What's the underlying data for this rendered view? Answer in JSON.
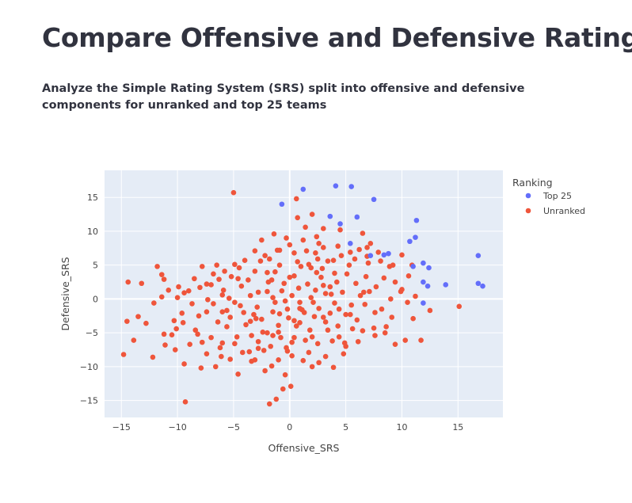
{
  "page": {
    "title": "Compare Offensive and Defensive Ratings",
    "subtitle": "Analyze the Simple Rating System (SRS) split into offensive and defensive components for unranked and top 25 teams"
  },
  "chart_data": {
    "type": "scatter",
    "xlabel": "Offensive_SRS",
    "ylabel": "Defensive_SRS",
    "xlim": [
      -16.5,
      19
    ],
    "ylim": [
      -17.5,
      19
    ],
    "x_ticks": [
      -15,
      -10,
      -5,
      0,
      5,
      10,
      15
    ],
    "y_ticks": [
      -15,
      -10,
      -5,
      0,
      5,
      10,
      15
    ],
    "grid": true,
    "plot_background": "#e5ecf6",
    "legend": {
      "title": "Ranking",
      "placement": "right"
    },
    "series": [
      {
        "name": "Top 25",
        "color": "#636efa",
        "points": [
          [
            1.2,
            16.2
          ],
          [
            4.1,
            16.7
          ],
          [
            5.5,
            16.6
          ],
          [
            -0.7,
            14.0
          ],
          [
            7.5,
            14.7
          ],
          [
            3.6,
            12.2
          ],
          [
            4.5,
            11.1
          ],
          [
            6.0,
            12.1
          ],
          [
            11.3,
            11.6
          ],
          [
            11.2,
            9.1
          ],
          [
            10.7,
            8.5
          ],
          [
            5.4,
            8.2
          ],
          [
            7.2,
            6.4
          ],
          [
            8.4,
            6.5
          ],
          [
            8.8,
            6.7
          ],
          [
            11.0,
            4.8
          ],
          [
            11.9,
            5.3
          ],
          [
            12.4,
            4.6
          ],
          [
            16.8,
            6.4
          ],
          [
            11.9,
            2.5
          ],
          [
            12.3,
            1.9
          ],
          [
            13.9,
            2.1
          ],
          [
            16.8,
            2.3
          ],
          [
            17.2,
            1.9
          ],
          [
            11.9,
            -0.6
          ]
        ]
      },
      {
        "name": "Unranked",
        "color": "#ef553b",
        "points": [
          [
            -5.0,
            15.7
          ],
          [
            0.6,
            14.8
          ],
          [
            -2.5,
            8.7
          ],
          [
            -0.9,
            7.2
          ],
          [
            -2.2,
            6.4
          ],
          [
            1.0,
            4.8
          ],
          [
            -1.3,
            4.0
          ],
          [
            2.4,
            3.9
          ],
          [
            0.0,
            3.2
          ],
          [
            -0.7,
            1.2
          ],
          [
            0.8,
            1.6
          ],
          [
            2.3,
            1.3
          ],
          [
            -0.2,
            -1.5
          ],
          [
            -1.5,
            -1.9
          ],
          [
            1.3,
            -2.0
          ],
          [
            -0.1,
            -2.8
          ],
          [
            0.9,
            -3.5
          ],
          [
            3.0,
            -2.7
          ],
          [
            -3.0,
            -2.9
          ],
          [
            -1.0,
            -4.9
          ],
          [
            -2.4,
            -4.9
          ],
          [
            0.4,
            -5.7
          ],
          [
            1.4,
            -6.1
          ],
          [
            -1.5,
            -5.4
          ],
          [
            -3.4,
            -5.4
          ],
          [
            -0.3,
            -7.2
          ],
          [
            -2.3,
            -7.6
          ],
          [
            1.7,
            -7.9
          ],
          [
            0.2,
            -8.4
          ],
          [
            -1.0,
            -9.0
          ],
          [
            -3.4,
            -9.2
          ],
          [
            2.6,
            -9.4
          ],
          [
            -4.2,
            -7.9
          ],
          [
            -6.0,
            -6.5
          ],
          [
            -5.6,
            -4.1
          ],
          [
            -3.9,
            -3.8
          ],
          [
            -5.6,
            -1.7
          ],
          [
            -4.9,
            -0.5
          ],
          [
            -6.0,
            0.6
          ],
          [
            -7.0,
            2.1
          ],
          [
            -5.2,
            3.3
          ],
          [
            -4.5,
            4.6
          ],
          [
            -6.5,
            5.0
          ],
          [
            -7.8,
            4.8
          ],
          [
            -8.5,
            3.0
          ],
          [
            -9.0,
            1.2
          ],
          [
            -10.0,
            0.2
          ],
          [
            -11.4,
            0.3
          ],
          [
            -13.5,
            -2.6
          ],
          [
            -13.9,
            -6.1
          ],
          [
            -14.8,
            -8.2
          ],
          [
            -9.4,
            -9.6
          ],
          [
            -9.3,
            -15.2
          ],
          [
            -12.2,
            -8.6
          ],
          [
            -10.2,
            -7.5
          ],
          [
            -7.8,
            -6.4
          ],
          [
            -8.4,
            -4.6
          ],
          [
            -10.5,
            -5.3
          ],
          [
            -10.3,
            -3.2
          ],
          [
            -14.5,
            -3.3
          ],
          [
            -12.8,
            -3.6
          ],
          [
            -11.8,
            4.8
          ],
          [
            -14.4,
            2.5
          ],
          [
            -13.2,
            2.3
          ],
          [
            -11.4,
            3.6
          ],
          [
            -1.2,
            -14.8
          ],
          [
            -1.8,
            -15.5
          ],
          [
            -0.6,
            -13.3
          ],
          [
            0.1,
            -12.9
          ],
          [
            -0.4,
            -11.2
          ],
          [
            -2.2,
            -10.6
          ],
          [
            -4.6,
            -11.1
          ],
          [
            -6.6,
            -10.0
          ],
          [
            -7.9,
            -10.2
          ],
          [
            -3.1,
            -9.0
          ],
          [
            2.0,
            -10.0
          ],
          [
            3.9,
            -10.1
          ],
          [
            5.0,
            -7.0
          ],
          [
            4.4,
            -5.6
          ],
          [
            3.4,
            -4.6
          ],
          [
            5.6,
            -4.4
          ],
          [
            5.0,
            -2.3
          ],
          [
            4.0,
            -0.6
          ],
          [
            3.7,
            0.7
          ],
          [
            4.2,
            2.5
          ],
          [
            5.1,
            3.7
          ],
          [
            3.4,
            5.6
          ],
          [
            2.5,
            5.9
          ],
          [
            4.6,
            6.4
          ],
          [
            5.8,
            5.9
          ],
          [
            3.0,
            7.6
          ],
          [
            2.4,
            9.2
          ],
          [
            1.2,
            8.7
          ],
          [
            -1.1,
            7.2
          ],
          [
            1.4,
            10.6
          ],
          [
            0.7,
            12.0
          ],
          [
            2.0,
            12.5
          ],
          [
            3.0,
            10.4
          ],
          [
            4.5,
            10.2
          ],
          [
            6.5,
            9.7
          ],
          [
            7.2,
            8.2
          ],
          [
            8.1,
            5.6
          ],
          [
            8.4,
            3.1
          ],
          [
            7.7,
            1.8
          ],
          [
            6.6,
            1.0
          ],
          [
            6.7,
            -0.8
          ],
          [
            6.0,
            -3.1
          ],
          [
            7.5,
            -4.3
          ],
          [
            9.1,
            -2.7
          ],
          [
            8.5,
            -5.0
          ],
          [
            9.4,
            -6.7
          ],
          [
            10.3,
            -6.1
          ],
          [
            11.0,
            -2.9
          ],
          [
            12.5,
            -1.7
          ],
          [
            11.2,
            0.4
          ],
          [
            10.0,
            1.4
          ],
          [
            9.4,
            2.5
          ],
          [
            9.2,
            5.0
          ],
          [
            10.0,
            6.5
          ],
          [
            10.6,
            3.4
          ],
          [
            11.7,
            -6.1
          ],
          [
            15.1,
            -1.1
          ],
          [
            10.5,
            -0.5
          ],
          [
            7.6,
            -2.0
          ],
          [
            7.0,
            5.3
          ],
          [
            6.2,
            7.3
          ],
          [
            4.3,
            7.8
          ],
          [
            1.9,
            4.6
          ],
          [
            0.4,
            6.8
          ],
          [
            -2.0,
            3.9
          ],
          [
            -3.7,
            2.8
          ],
          [
            -3.5,
            0.5
          ],
          [
            -2.9,
            -1.2
          ],
          [
            -2.0,
            1.1
          ],
          [
            -1.6,
            2.8
          ],
          [
            -0.4,
            -0.3
          ],
          [
            0.9,
            -0.5
          ],
          [
            2.6,
            -1.4
          ],
          [
            3.2,
            -3.4
          ],
          [
            1.8,
            -4.6
          ],
          [
            0.4,
            -3.2
          ],
          [
            -0.9,
            -2.2
          ],
          [
            -2.5,
            -3.0
          ],
          [
            -4.1,
            -2.0
          ],
          [
            -5.3,
            -2.7
          ],
          [
            -6.4,
            -3.4
          ],
          [
            -7.4,
            -1.9
          ],
          [
            -8.7,
            -0.7
          ],
          [
            -9.6,
            -2.1
          ],
          [
            -8.0,
            1.7
          ],
          [
            -6.8,
            3.7
          ],
          [
            -5.8,
            4.1
          ],
          [
            -4.0,
            5.7
          ],
          [
            -3.1,
            7.1
          ],
          [
            -1.8,
            5.9
          ],
          [
            -0.3,
            9.0
          ],
          [
            1.5,
            7.1
          ],
          [
            2.8,
            3.2
          ],
          [
            3.6,
            1.8
          ],
          [
            2.1,
            -0.5
          ],
          [
            1.1,
            -1.6
          ],
          [
            -0.8,
            -5.7
          ],
          [
            -2.8,
            -6.3
          ],
          [
            -4.7,
            -5.6
          ],
          [
            -6.2,
            -7.2
          ],
          [
            -7.4,
            -8.1
          ],
          [
            -8.9,
            -6.7
          ],
          [
            -10.1,
            -4.4
          ],
          [
            -11.2,
            -5.2
          ],
          [
            -12.1,
            -0.6
          ],
          [
            -10.8,
            1.3
          ],
          [
            -9.4,
            0.9
          ],
          [
            -7.3,
            -0.1
          ],
          [
            -5.9,
            1.3
          ],
          [
            -4.3,
            1.9
          ],
          [
            -2.8,
            1.0
          ],
          [
            -1.3,
            -0.5
          ],
          [
            0.2,
            0.5
          ],
          [
            1.6,
            2.2
          ],
          [
            3.0,
            2.0
          ],
          [
            4.7,
            1.0
          ],
          [
            5.9,
            2.3
          ],
          [
            6.8,
            3.3
          ],
          [
            7.9,
            6.9
          ],
          [
            8.9,
            4.8
          ],
          [
            -0.2,
            -7.7
          ],
          [
            2.5,
            -6.6
          ],
          [
            3.8,
            -6.2
          ],
          [
            4.8,
            -8.1
          ],
          [
            3.2,
            -8.5
          ],
          [
            1.2,
            -9.1
          ],
          [
            -1.6,
            -9.9
          ],
          [
            -2.8,
            -7.3
          ],
          [
            -4.9,
            -6.6
          ],
          [
            -6.1,
            -8.5
          ],
          [
            -3.5,
            -3.3
          ],
          [
            -2.0,
            -5.0
          ],
          [
            -1.0,
            -3.9
          ],
          [
            0.6,
            -4.0
          ],
          [
            2.2,
            -2.6
          ],
          [
            3.6,
            -2.1
          ],
          [
            4.3,
            -4.0
          ],
          [
            5.5,
            -0.9
          ],
          [
            6.3,
            0.5
          ],
          [
            7.1,
            1.1
          ],
          [
            8.6,
            -4.1
          ],
          [
            9.9,
            1.1
          ],
          [
            10.9,
            5.0
          ],
          [
            6.9,
            6.3
          ],
          [
            5.4,
            6.9
          ],
          [
            4.0,
            3.8
          ],
          [
            2.9,
            4.5
          ],
          [
            1.7,
            5.1
          ],
          [
            0.4,
            3.4
          ],
          [
            -0.5,
            2.3
          ],
          [
            -1.9,
            2.5
          ],
          [
            -3.1,
            4.1
          ],
          [
            -4.6,
            3.0
          ],
          [
            -5.4,
            0.1
          ],
          [
            -6.8,
            -0.7
          ],
          [
            -8.1,
            -2.5
          ],
          [
            -9.5,
            -3.5
          ],
          [
            -11.1,
            -6.8
          ],
          [
            -9.9,
            1.8
          ],
          [
            -11.2,
            2.9
          ],
          [
            -7.4,
            2.2
          ],
          [
            -6.0,
            -1.9
          ],
          [
            -4.4,
            -1.0
          ],
          [
            -3.2,
            -2.3
          ],
          [
            -1.5,
            0.2
          ],
          [
            0.9,
            -1.4
          ],
          [
            1.9,
            0.2
          ],
          [
            3.2,
            0.8
          ],
          [
            4.4,
            -1.5
          ],
          [
            5.4,
            -2.3
          ],
          [
            6.5,
            -4.7
          ],
          [
            7.6,
            -5.4
          ],
          [
            8.2,
            -1.5
          ],
          [
            9.0,
            0.0
          ],
          [
            6.1,
            -6.3
          ],
          [
            4.9,
            -6.5
          ],
          [
            2.0,
            -5.6
          ],
          [
            0.2,
            -6.4
          ],
          [
            -1.7,
            -7.0
          ],
          [
            -3.6,
            -7.8
          ],
          [
            -5.3,
            -8.9
          ],
          [
            -7.0,
            -5.7
          ],
          [
            -8.2,
            -5.2
          ],
          [
            -6.3,
            2.9
          ],
          [
            -4.9,
            5.1
          ],
          [
            -2.6,
            5.6
          ],
          [
            -0.9,
            5.0
          ],
          [
            0.7,
            5.5
          ],
          [
            2.3,
            6.8
          ],
          [
            3.9,
            5.7
          ],
          [
            5.3,
            5.0
          ],
          [
            6.9,
            7.6
          ],
          [
            2.6,
            8.2
          ],
          [
            0.0,
            8.0
          ],
          [
            -1.4,
            9.6
          ]
        ]
      }
    ]
  }
}
